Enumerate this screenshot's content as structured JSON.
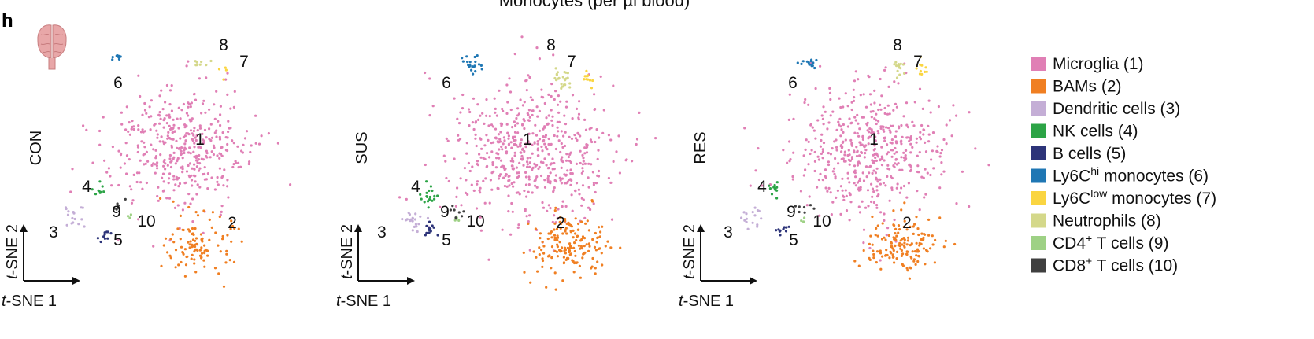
{
  "figure": {
    "panel_letter": "h",
    "top_caption": "Monocytes (per µl blood)"
  },
  "colors": {
    "Microglia": "#e07fb5",
    "BAMs": "#f07f22",
    "Dendritic cells": "#c4aed6",
    "NK cells": "#2ca446",
    "B cells": "#2d3479",
    "Ly6Chi monocytes": "#1f77b4",
    "Ly6Clow monocytes": "#fad541",
    "Neutrophils": "#d4d88a",
    "CD4+ T cells": "#9ed185",
    "CD8+ T cells": "#3f3f3f"
  },
  "legend": [
    {
      "pre": "Microglia (1)",
      "sup": "",
      "post": "",
      "color": "#e07fb5"
    },
    {
      "pre": "BAMs (2)",
      "sup": "",
      "post": "",
      "color": "#f07f22"
    },
    {
      "pre": "Dendritic cells (3)",
      "sup": "",
      "post": "",
      "color": "#c4aed6"
    },
    {
      "pre": "NK cells (4)",
      "sup": "",
      "post": "",
      "color": "#2ca446"
    },
    {
      "pre": "B cells (5)",
      "sup": "",
      "post": "",
      "color": "#2d3479"
    },
    {
      "pre": "Ly6C",
      "sup": "hi",
      "post": " monocytes (6)",
      "color": "#1f77b4"
    },
    {
      "pre": "Ly6C",
      "sup": "low",
      "post": " monocytes (7)",
      "color": "#fad541"
    },
    {
      "pre": "Neutrophils (8)",
      "sup": "",
      "post": "",
      "color": "#d4d88a"
    },
    {
      "pre": "CD4",
      "sup": "+",
      "post": " T cells (9)",
      "color": "#9ed185"
    },
    {
      "pre": "CD8",
      "sup": "+",
      "post": " T cells (10)",
      "color": "#3f3f3f"
    }
  ],
  "chart_data": [
    {
      "type": "scatter",
      "condition": "CON",
      "xlabel": "t-SNE 1",
      "ylabel": "t-SNE 2",
      "cluster_labels": [
        "1",
        "2",
        "3",
        "4",
        "5",
        "6",
        "7",
        "8",
        "9",
        "10"
      ],
      "clusters": [
        {
          "id": 1,
          "name": "Microglia",
          "center": [
            0.55,
            0.55
          ],
          "spread": [
            0.25,
            0.22
          ],
          "n": 420
        },
        {
          "id": 2,
          "name": "BAMs",
          "center": [
            0.62,
            0.2
          ],
          "spread": [
            0.12,
            0.1
          ],
          "n": 110
        },
        {
          "id": 3,
          "name": "Dendritic cells",
          "center": [
            0.12,
            0.32
          ],
          "spread": [
            0.04,
            0.05
          ],
          "n": 16
        },
        {
          "id": 4,
          "name": "NK cells",
          "center": [
            0.22,
            0.4
          ],
          "spread": [
            0.02,
            0.03
          ],
          "n": 9
        },
        {
          "id": 5,
          "name": "B cells",
          "center": [
            0.24,
            0.24
          ],
          "spread": [
            0.03,
            0.02
          ],
          "n": 10
        },
        {
          "id": 6,
          "name": "Ly6Chi monocytes",
          "center": [
            0.3,
            0.9
          ],
          "spread": [
            0.02,
            0.02
          ],
          "n": 9
        },
        {
          "id": 7,
          "name": "Ly6Clow monocytes",
          "center": [
            0.72,
            0.86
          ],
          "spread": [
            0.02,
            0.03
          ],
          "n": 4
        },
        {
          "id": 8,
          "name": "Neutrophils",
          "center": [
            0.62,
            0.88
          ],
          "spread": [
            0.03,
            0.02
          ],
          "n": 8
        },
        {
          "id": 9,
          "name": "CD4+ T cells",
          "center": [
            0.34,
            0.3
          ],
          "spread": [
            0.01,
            0.01
          ],
          "n": 3
        },
        {
          "id": 10,
          "name": "CD8+ T cells",
          "center": [
            0.3,
            0.35
          ],
          "spread": [
            0.03,
            0.03
          ],
          "n": 7
        }
      ]
    },
    {
      "type": "scatter",
      "condition": "SUS",
      "xlabel": "t-SNE 1",
      "ylabel": "t-SNE 2",
      "cluster_labels": [
        "1",
        "2",
        "3",
        "4",
        "5",
        "6",
        "7",
        "8",
        "9",
        "10"
      ],
      "clusters": [
        {
          "id": 1,
          "name": "Microglia",
          "center": [
            0.55,
            0.55
          ],
          "spread": [
            0.25,
            0.22
          ],
          "n": 560
        },
        {
          "id": 2,
          "name": "BAMs",
          "center": [
            0.68,
            0.2
          ],
          "spread": [
            0.13,
            0.1
          ],
          "n": 170
        },
        {
          "id": 3,
          "name": "Dendritic cells",
          "center": [
            0.14,
            0.3
          ],
          "spread": [
            0.04,
            0.05
          ],
          "n": 22
        },
        {
          "id": 4,
          "name": "NK cells",
          "center": [
            0.2,
            0.38
          ],
          "spread": [
            0.03,
            0.04
          ],
          "n": 18
        },
        {
          "id": 5,
          "name": "B cells",
          "center": [
            0.2,
            0.26
          ],
          "spread": [
            0.03,
            0.02
          ],
          "n": 14
        },
        {
          "id": 6,
          "name": "Ly6Chi monocytes",
          "center": [
            0.35,
            0.87
          ],
          "spread": [
            0.03,
            0.03
          ],
          "n": 22
        },
        {
          "id": 7,
          "name": "Ly6Clow monocytes",
          "center": [
            0.75,
            0.82
          ],
          "spread": [
            0.02,
            0.03
          ],
          "n": 12
        },
        {
          "id": 8,
          "name": "Neutrophils",
          "center": [
            0.66,
            0.82
          ],
          "spread": [
            0.03,
            0.03
          ],
          "n": 24
        },
        {
          "id": 9,
          "name": "CD4+ T cells",
          "center": [
            0.3,
            0.3
          ],
          "spread": [
            0.01,
            0.01
          ],
          "n": 4
        },
        {
          "id": 10,
          "name": "CD8+ T cells",
          "center": [
            0.3,
            0.32
          ],
          "spread": [
            0.03,
            0.03
          ],
          "n": 8
        }
      ]
    },
    {
      "type": "scatter",
      "condition": "RES",
      "xlabel": "t-SNE 1",
      "ylabel": "t-SNE 2",
      "cluster_labels": [
        "1",
        "2",
        "3",
        "4",
        "5",
        "6",
        "7",
        "8",
        "9",
        "10"
      ],
      "clusters": [
        {
          "id": 1,
          "name": "Microglia",
          "center": [
            0.55,
            0.55
          ],
          "spread": [
            0.25,
            0.22
          ],
          "n": 500
        },
        {
          "id": 2,
          "name": "BAMs",
          "center": [
            0.68,
            0.2
          ],
          "spread": [
            0.13,
            0.1
          ],
          "n": 150
        },
        {
          "id": 3,
          "name": "Dendritic cells",
          "center": [
            0.13,
            0.3
          ],
          "spread": [
            0.04,
            0.04
          ],
          "n": 16
        },
        {
          "id": 4,
          "name": "NK cells",
          "center": [
            0.22,
            0.4
          ],
          "spread": [
            0.02,
            0.03
          ],
          "n": 12
        },
        {
          "id": 5,
          "name": "B cells",
          "center": [
            0.24,
            0.26
          ],
          "spread": [
            0.03,
            0.02
          ],
          "n": 10
        },
        {
          "id": 6,
          "name": "Ly6Chi monocytes",
          "center": [
            0.35,
            0.88
          ],
          "spread": [
            0.03,
            0.02
          ],
          "n": 14
        },
        {
          "id": 7,
          "name": "Ly6Clow monocytes",
          "center": [
            0.74,
            0.86
          ],
          "spread": [
            0.02,
            0.03
          ],
          "n": 10
        },
        {
          "id": 8,
          "name": "Neutrophils",
          "center": [
            0.66,
            0.86
          ],
          "spread": [
            0.03,
            0.03
          ],
          "n": 14
        },
        {
          "id": 9,
          "name": "CD4+ T cells",
          "center": [
            0.32,
            0.3
          ],
          "spread": [
            0.01,
            0.01
          ],
          "n": 3
        },
        {
          "id": 10,
          "name": "CD8+ T cells",
          "center": [
            0.32,
            0.34
          ],
          "spread": [
            0.03,
            0.03
          ],
          "n": 7
        }
      ]
    }
  ]
}
